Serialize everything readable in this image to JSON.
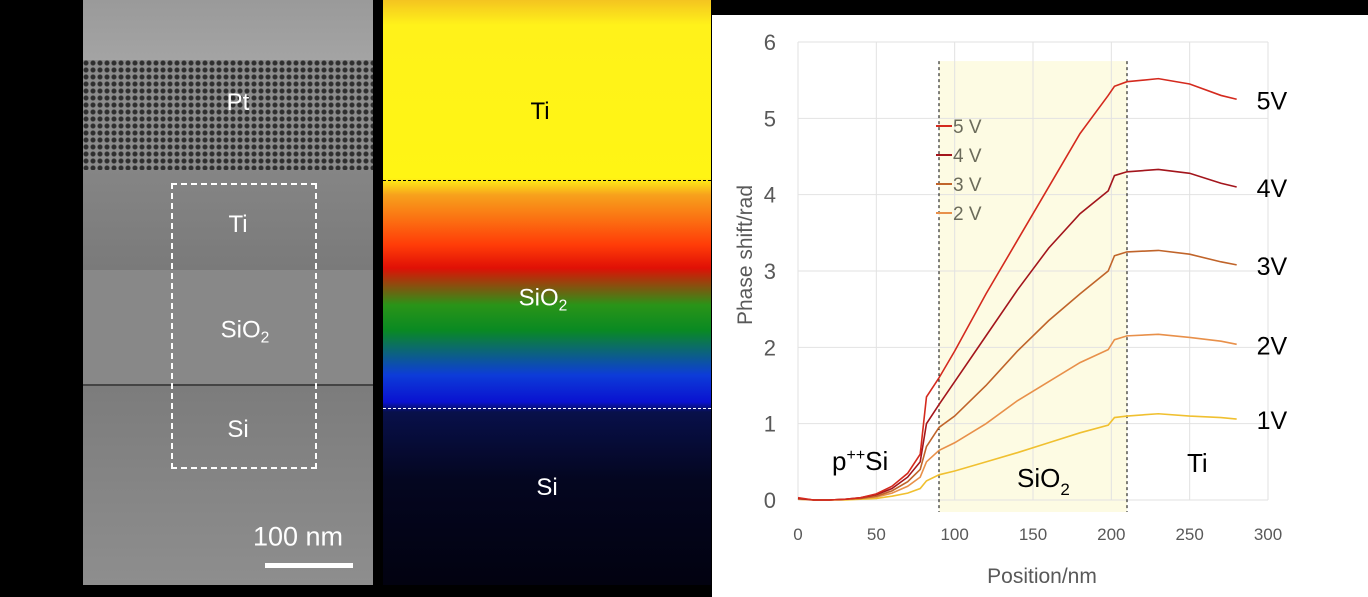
{
  "tem_panel": {
    "labels": {
      "pt": "Pt",
      "ti": "Ti",
      "sio2_main": "SiO",
      "sio2_sub": "2",
      "si": "Si"
    },
    "scale_bar": "100 nm"
  },
  "map_panel": {
    "labels": {
      "ti": "Ti",
      "sio2_main": "SiO",
      "sio2_sub": "2",
      "si": "Si"
    }
  },
  "chart_data": {
    "type": "line",
    "xlabel": "Position/nm",
    "ylabel": "Phase shift/rad",
    "xlim": [
      0,
      300
    ],
    "ylim": [
      0,
      6
    ],
    "xticks": [
      0,
      50,
      100,
      150,
      200,
      250,
      300
    ],
    "yticks": [
      0,
      1,
      2,
      3,
      4,
      5,
      6
    ],
    "grid": true,
    "legend": {
      "placement": "upper-middle",
      "entries": [
        "5 V",
        "4 V",
        "3 V",
        "2 V"
      ]
    },
    "shaded_region": {
      "x": [
        90,
        210
      ],
      "color": "#fdfbe3"
    },
    "dashed_lines_x": [
      90,
      210
    ],
    "region_labels": {
      "psi_main": "p",
      "psi_sup": "++",
      "psi_tail": "Si",
      "sio2_main": "SiO",
      "sio2_sub": "2",
      "ti": "Ti"
    },
    "x": [
      0,
      10,
      20,
      30,
      40,
      50,
      60,
      70,
      78,
      82,
      90,
      100,
      120,
      140,
      160,
      180,
      198,
      202,
      210,
      230,
      250,
      270,
      280
    ],
    "series": [
      {
        "name": "5 V",
        "end_label": "5V",
        "color": "#d42a1e",
        "values": [
          0.03,
          0,
          0,
          0.01,
          0.03,
          0.08,
          0.18,
          0.35,
          0.6,
          1.35,
          1.6,
          1.95,
          2.7,
          3.4,
          4.1,
          4.8,
          5.3,
          5.42,
          5.48,
          5.52,
          5.45,
          5.3,
          5.25
        ]
      },
      {
        "name": "4 V",
        "end_label": "4V",
        "color": "#a3151c",
        "values": [
          0.02,
          0,
          0,
          0.01,
          0.03,
          0.07,
          0.15,
          0.3,
          0.5,
          1.0,
          1.25,
          1.55,
          2.15,
          2.75,
          3.3,
          3.75,
          4.05,
          4.25,
          4.3,
          4.33,
          4.28,
          4.15,
          4.1
        ]
      },
      {
        "name": "3 V",
        "end_label": "3V",
        "color": "#c0642a",
        "values": [
          0.02,
          0,
          0,
          0.01,
          0.02,
          0.05,
          0.12,
          0.24,
          0.4,
          0.7,
          0.95,
          1.1,
          1.5,
          1.95,
          2.35,
          2.7,
          3.0,
          3.2,
          3.25,
          3.27,
          3.22,
          3.12,
          3.08
        ]
      },
      {
        "name": "2 V",
        "end_label": "2V",
        "color": "#e8904a",
        "values": [
          0.01,
          0,
          0,
          0.01,
          0.02,
          0.04,
          0.09,
          0.18,
          0.3,
          0.5,
          0.65,
          0.75,
          1.0,
          1.3,
          1.55,
          1.8,
          1.97,
          2.1,
          2.15,
          2.17,
          2.13,
          2.08,
          2.04
        ]
      },
      {
        "name": "1V",
        "end_label": "1V",
        "color": "#f0c030",
        "values": [
          0.01,
          0,
          0,
          0,
          0.01,
          0.02,
          0.05,
          0.09,
          0.15,
          0.25,
          0.33,
          0.38,
          0.5,
          0.62,
          0.75,
          0.88,
          0.98,
          1.08,
          1.1,
          1.13,
          1.1,
          1.08,
          1.06
        ]
      }
    ]
  }
}
